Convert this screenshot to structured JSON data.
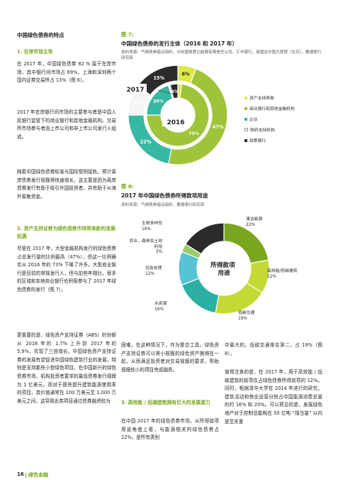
{
  "left": {
    "title": "中国绿色债券的特点",
    "s1_heading": "1. 在岸市场主导",
    "p1": "在 2017 年，中国绿色债券 82 % 属于在岸市场，其中银行间市场占 69%，上海和深圳两个国内证券交易所占 13%（图 6）。",
    "p2": "2017 年在岸银行间市场的主要参与者是中国人民银行监管下的商业银行和其他金融机构。交易所市场参与者由上市公司和非上市公司发行人组成。",
    "p3": "随着中国绿色债券标准与国际惯例接轨，预计离岸债券发行规模将快速增长，这主要是因为离岸债券发行有助于吸引外国投资者，并有助于从海外筹集资金。",
    "s2_heading": "2. 资产支持证券为绿色债券市场带来新的发展机遇",
    "p4": "尽管在 2017 年，大型金融机构发行的绿色债券占总发行量的比例最高（47%），但这一比例确实从 2016 年的 73% 下降了许多。大型商业银行是目前的常规发行人，但与前些年相比，很多的区域和本地商业银行也积极参与了 2017 年绿色债券的发行（图 7）。",
    "p5": "更重要的是，绿色资产支持证券（ABS）的份额从 2016 年的 1.7% 上升到 2017 年的 5.9%，实现了三倍增长。中国绿色资产支持证券的发展有望促进中国绿色建筑行业的发展，特别是支持那些小型绿色项目。在中国新兴的绿色债券市场，机构投资者要求的最低债券发行规模为 1 亿美元，而对于那些提升建筑能源使用率的项目，其价值通常在 100 万美元至 1,000 万美元之间，这导致此类项目通过债券融资较为"
  },
  "middle": {
    "p1": "困难。在这种情况下，作为聚合工具，绿色资产支持证券可以将小规模的绿色资产捆绑在一起，从而满足投资者对交易规模的要求，帮助规模较小的项目完成融资。",
    "s3_heading": "3. 高效能 / 低碳建筑拥有巨大的发展潜力",
    "p2": "在中国 2017 年的绿色债券市场，从所得款项用途角度上看，与能源相关的绿色债券占 22%，是所有类别"
  },
  "right": {
    "p1": "中最大的。低碳交通排名第二，占 19%（图 8）。",
    "p2": "值得注意的是，在 2017 年，用于高效能 / 低碳建筑的款项仅占绿色债券所得款项的 12%。同时，根据清华大学在 2014 年进行的研究，建筑活动和物业运营分别占中国能源消费总量的约 16% 和 20%。可以预见的是，发展绿色地产对于控制总能耗在 50 亿吨 “煤当量” 以内是至关重"
  },
  "figure7": {
    "label": "图 7:",
    "title": "中国绿色债券的发行主体（2016 和 2017 年）",
    "source": "资料来源：气候债券倡议组织，中央国债登记结算有限责任公司，汇丰银行，英国驻中国大使馆（北京），戴德梁行研究部",
    "tag_2017": "2017",
    "tag_2016": "2016",
    "legend": [
      {
        "name": "资产支持债券",
        "color": "#dfe84a"
      },
      {
        "name": "商业银行和其他金融机构",
        "color": "#9fc43a"
      },
      {
        "name": "企业",
        "color": "#36b8a3"
      },
      {
        "name": "政府支持机构",
        "color": "#f5f5f5"
      },
      {
        "name": "政策银行",
        "color": "#2b2b2b"
      }
    ]
  },
  "figure8": {
    "label": "图 8:",
    "title": "2017 年中国绿色债券所得款项用途",
    "source": "资料来源：气候债券倡议组织，戴德梁行研究部",
    "center_label": "所得款项用途",
    "callouts": [
      {
        "name": "清洁能源",
        "value": "22%"
      },
      {
        "name": "高效能/低碳建筑",
        "value": "12%"
      },
      {
        "name": "低碳交通",
        "value": "19%"
      },
      {
        "name": "水资源",
        "value": "16%"
      },
      {
        "name": "垃圾处理",
        "value": "12%"
      },
      {
        "name": "农业、森林及土地利用",
        "value": "3%"
      },
      {
        "name": "生物多样性",
        "value": "16%"
      }
    ]
  },
  "chart_data": [
    {
      "type": "pie",
      "title": "中国绿色债券的发行主体（2016 和 2017 年）",
      "series": [
        {
          "name": "2017",
          "categories": [
            "资产支持债券",
            "商业银行和其他金融机构",
            "企业",
            "政府支持机构",
            "政策银行"
          ],
          "values": [
            6,
            47,
            22,
            10,
            15
          ]
        },
        {
          "name": "2016",
          "categories": [
            "资产支持债券",
            "商业银行和其他金融机构",
            "企业",
            "政府支持机构",
            "政策银行"
          ],
          "values": [
            2,
            73,
            20,
            1,
            4
          ]
        }
      ],
      "data_labels_2017": [
        "6%",
        "47%",
        "22%",
        "10%",
        "15%"
      ],
      "data_labels_2016": [
        "73%",
        "20%",
        "4%"
      ]
    },
    {
      "type": "pie",
      "title": "2017 年中国绿色债券所得款项用途",
      "categories": [
        "清洁能源",
        "高效能/低碳建筑",
        "低碳交通",
        "水资源",
        "垃圾处理",
        "农业、森林及土地利用",
        "生物多样性"
      ],
      "values": [
        22,
        12,
        19,
        16,
        12,
        3,
        16
      ],
      "colors": [
        "#7aa61f",
        "#c5d934",
        "#c5d934",
        "#2bb0a3",
        "#56c3d6",
        "#9acc6a",
        "#2b2b2b"
      ]
    }
  ],
  "footer": {
    "page": "16",
    "section": "绿色金融"
  }
}
